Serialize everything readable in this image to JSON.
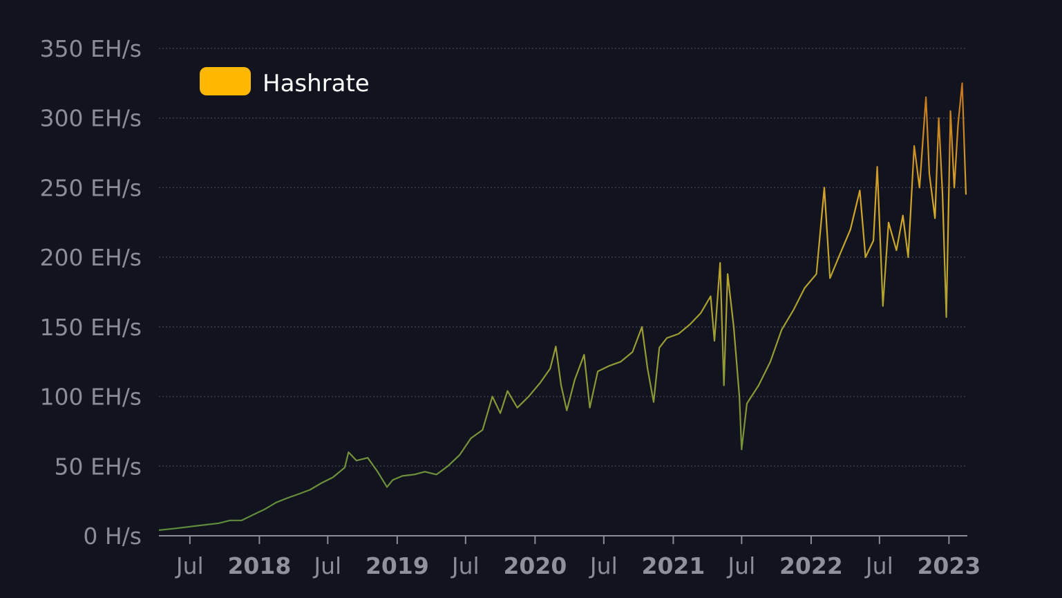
{
  "chart_data": {
    "type": "line",
    "title": "",
    "xlabel": "",
    "ylabel": "",
    "ylim": [
      0,
      350
    ],
    "xlim": [
      "2017-04-10",
      "2023-02-15"
    ],
    "y_unit": "EH/s",
    "y_ticks": [
      {
        "value": 0,
        "label": "0 H/s"
      },
      {
        "value": 50,
        "label": "50 EH/s"
      },
      {
        "value": 100,
        "label": "100 EH/s"
      },
      {
        "value": 150,
        "label": "150 EH/s"
      },
      {
        "value": 200,
        "label": "200 EH/s"
      },
      {
        "value": 250,
        "label": "250 EH/s"
      },
      {
        "value": 300,
        "label": "300 EH/s"
      },
      {
        "value": 350,
        "label": "350 EH/s"
      }
    ],
    "x_ticks": [
      {
        "date": "2017-07-01",
        "label": "Jul",
        "major": false
      },
      {
        "date": "2018-01-01",
        "label": "2018",
        "major": true
      },
      {
        "date": "2018-07-01",
        "label": "Jul",
        "major": false
      },
      {
        "date": "2019-01-01",
        "label": "2019",
        "major": true
      },
      {
        "date": "2019-07-01",
        "label": "Jul",
        "major": false
      },
      {
        "date": "2020-01-01",
        "label": "2020",
        "major": true
      },
      {
        "date": "2020-07-01",
        "label": "Jul",
        "major": false
      },
      {
        "date": "2021-01-01",
        "label": "2021",
        "major": true
      },
      {
        "date": "2021-07-01",
        "label": "Jul",
        "major": false
      },
      {
        "date": "2022-01-01",
        "label": "2022",
        "major": true
      },
      {
        "date": "2022-07-01",
        "label": "Jul",
        "major": false
      },
      {
        "date": "2023-01-01",
        "label": "2023",
        "major": true
      }
    ],
    "grid": "horizontal-dotted",
    "legend_placement": "top-left",
    "series": [
      {
        "name": "Hashrate",
        "legend_color": "#ffb700",
        "gradient_colors": [
          "#5b8a3c",
          "#8f9a36",
          "#d6a82a",
          "#c2661c"
        ],
        "points": [
          [
            "2017-04-10",
            4
          ],
          [
            "2017-05-15",
            5
          ],
          [
            "2017-06-15",
            6
          ],
          [
            "2017-07-15",
            7
          ],
          [
            "2017-08-15",
            8
          ],
          [
            "2017-09-15",
            9
          ],
          [
            "2017-10-15",
            11
          ],
          [
            "2017-11-15",
            11
          ],
          [
            "2017-12-15",
            15
          ],
          [
            "2018-01-15",
            19
          ],
          [
            "2018-02-15",
            24
          ],
          [
            "2018-03-15",
            27
          ],
          [
            "2018-04-15",
            30
          ],
          [
            "2018-05-15",
            33
          ],
          [
            "2018-06-15",
            38
          ],
          [
            "2018-07-15",
            42
          ],
          [
            "2018-08-15",
            49
          ],
          [
            "2018-08-25",
            60
          ],
          [
            "2018-09-15",
            54
          ],
          [
            "2018-10-15",
            56
          ],
          [
            "2018-11-10",
            46
          ],
          [
            "2018-12-05",
            35
          ],
          [
            "2018-12-20",
            40
          ],
          [
            "2019-01-15",
            43
          ],
          [
            "2019-02-15",
            44
          ],
          [
            "2019-03-15",
            46
          ],
          [
            "2019-04-15",
            44
          ],
          [
            "2019-05-15",
            50
          ],
          [
            "2019-06-15",
            58
          ],
          [
            "2019-07-15",
            70
          ],
          [
            "2019-08-15",
            76
          ],
          [
            "2019-09-10",
            100
          ],
          [
            "2019-10-01",
            88
          ],
          [
            "2019-10-20",
            104
          ],
          [
            "2019-11-15",
            92
          ],
          [
            "2019-12-15",
            100
          ],
          [
            "2020-01-15",
            110
          ],
          [
            "2020-02-10",
            120
          ],
          [
            "2020-02-25",
            136
          ],
          [
            "2020-03-10",
            108
          ],
          [
            "2020-03-25",
            90
          ],
          [
            "2020-04-15",
            112
          ],
          [
            "2020-05-10",
            130
          ],
          [
            "2020-05-25",
            92
          ],
          [
            "2020-06-15",
            118
          ],
          [
            "2020-07-15",
            122
          ],
          [
            "2020-08-15",
            125
          ],
          [
            "2020-09-15",
            132
          ],
          [
            "2020-10-10",
            150
          ],
          [
            "2020-10-25",
            120
          ],
          [
            "2020-11-10",
            96
          ],
          [
            "2020-11-25",
            135
          ],
          [
            "2020-12-15",
            142
          ],
          [
            "2021-01-15",
            145
          ],
          [
            "2021-02-15",
            152
          ],
          [
            "2021-03-15",
            160
          ],
          [
            "2021-04-10",
            172
          ],
          [
            "2021-04-20",
            140
          ],
          [
            "2021-05-05",
            196
          ],
          [
            "2021-05-15",
            108
          ],
          [
            "2021-05-25",
            188
          ],
          [
            "2021-06-10",
            150
          ],
          [
            "2021-06-25",
            100
          ],
          [
            "2021-07-01",
            62
          ],
          [
            "2021-07-15",
            95
          ],
          [
            "2021-08-15",
            108
          ],
          [
            "2021-09-15",
            125
          ],
          [
            "2021-10-15",
            148
          ],
          [
            "2021-11-15",
            162
          ],
          [
            "2021-12-15",
            178
          ],
          [
            "2022-01-15",
            188
          ],
          [
            "2022-02-05",
            250
          ],
          [
            "2022-02-20",
            185
          ],
          [
            "2022-03-15",
            200
          ],
          [
            "2022-04-15",
            220
          ],
          [
            "2022-05-10",
            248
          ],
          [
            "2022-05-25",
            200
          ],
          [
            "2022-06-15",
            212
          ],
          [
            "2022-06-25",
            265
          ],
          [
            "2022-07-10",
            165
          ],
          [
            "2022-07-25",
            225
          ],
          [
            "2022-08-15",
            205
          ],
          [
            "2022-09-01",
            230
          ],
          [
            "2022-09-15",
            200
          ],
          [
            "2022-10-01",
            280
          ],
          [
            "2022-10-15",
            250
          ],
          [
            "2022-11-01",
            315
          ],
          [
            "2022-11-10",
            260
          ],
          [
            "2022-11-25",
            228
          ],
          [
            "2022-12-05",
            300
          ],
          [
            "2022-12-15",
            245
          ],
          [
            "2022-12-25",
            157
          ],
          [
            "2023-01-05",
            305
          ],
          [
            "2023-01-15",
            250
          ],
          [
            "2023-01-25",
            295
          ],
          [
            "2023-02-05",
            325
          ],
          [
            "2023-02-15",
            245
          ]
        ]
      }
    ]
  }
}
